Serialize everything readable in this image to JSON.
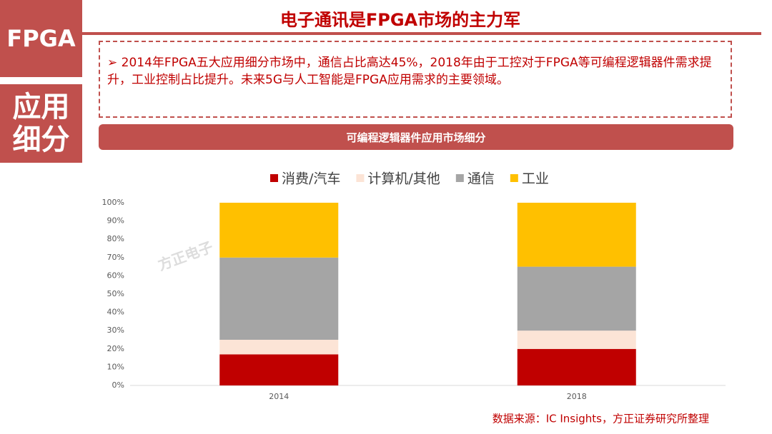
{
  "header": {
    "tag": "FPGA",
    "section": "应用细分",
    "title": "电子通讯是FPGA市场的主力军",
    "bullet": "2014年FPGA五大应用细分市场中，通信占比高达45%，2018年由于工控对于FPGA等可编程逻辑器件需求提升，工业控制占比提升。未来5G与人工智能是FPGA应用需求的主要领域。"
  },
  "chart_data": {
    "type": "stacked-bar",
    "title": "可编程逻辑器件应用市场细分",
    "watermark": "方正电子",
    "categories": [
      "2014",
      "2018"
    ],
    "series": [
      {
        "name": "消费/汽车",
        "color": "#c00000",
        "values": [
          17,
          20
        ]
      },
      {
        "name": "计算机/其他",
        "color": "#fce4d6",
        "values": [
          8,
          10
        ]
      },
      {
        "name": "通信",
        "color": "#a5a5a5",
        "values": [
          45,
          35
        ]
      },
      {
        "name": "工业",
        "color": "#ffc000",
        "values": [
          30,
          35
        ]
      }
    ],
    "ylim": [
      0,
      100
    ],
    "yticks": [
      {
        "value": 0,
        "label": "0%"
      },
      {
        "value": 10,
        "label": "10%"
      },
      {
        "value": 20,
        "label": "20%"
      },
      {
        "value": 30,
        "label": "30%"
      },
      {
        "value": 40,
        "label": "40%"
      },
      {
        "value": 50,
        "label": "50%"
      },
      {
        "value": 60,
        "label": "60%"
      },
      {
        "value": 70,
        "label": "70%"
      },
      {
        "value": 80,
        "label": "80%"
      },
      {
        "value": 90,
        "label": "90%"
      },
      {
        "value": 100,
        "label": "100%"
      }
    ],
    "source": "数据来源：IC Insights，方正证券研究所整理"
  }
}
